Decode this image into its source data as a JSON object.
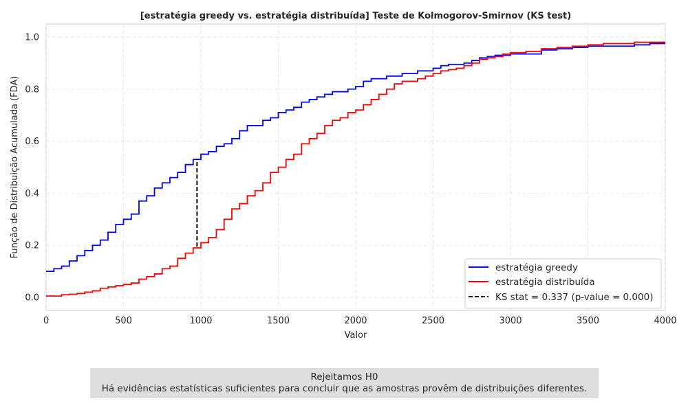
{
  "chart_data": {
    "type": "line",
    "title": "[estratégia greedy vs. estratégia distribuída] Teste de Kolmogorov-Smirnov (KS test)",
    "xlabel": "Valor",
    "ylabel": "Função de Distribuição Acumulada (FDA)",
    "xlim": [
      0,
      4000
    ],
    "ylim": [
      -0.05,
      1.05
    ],
    "x_ticks": [
      0,
      500,
      1000,
      1500,
      2000,
      2500,
      3000,
      3500,
      4000
    ],
    "x_tick_labels": [
      "0",
      "500",
      "1000",
      "1500",
      "2000",
      "2500",
      "3000",
      "3500",
      "4000"
    ],
    "y_ticks": [
      0.0,
      0.2,
      0.4,
      0.6,
      0.8,
      1.0
    ],
    "y_tick_labels": [
      "0.0",
      "0.2",
      "0.4",
      "0.6",
      "0.8",
      "1.0"
    ],
    "grid": true,
    "legend_position": "lower-right",
    "series": [
      {
        "name": "estratégia greedy",
        "color": "#0000ff",
        "x": [
          0,
          50,
          100,
          150,
          200,
          250,
          300,
          350,
          400,
          450,
          500,
          550,
          600,
          650,
          700,
          750,
          800,
          850,
          900,
          950,
          1000,
          1050,
          1100,
          1150,
          1200,
          1250,
          1300,
          1350,
          1400,
          1450,
          1500,
          1550,
          1600,
          1650,
          1700,
          1750,
          1800,
          1850,
          1900,
          1950,
          2000,
          2050,
          2100,
          2150,
          2200,
          2250,
          2300,
          2350,
          2400,
          2450,
          2500,
          2550,
          2600,
          2650,
          2700,
          2750,
          2800,
          2850,
          2900,
          2950,
          3000,
          3100,
          3200,
          3300,
          3400,
          3500,
          3600,
          3700,
          3800,
          3900,
          4000
        ],
        "y": [
          0.1,
          0.11,
          0.12,
          0.14,
          0.16,
          0.18,
          0.2,
          0.22,
          0.25,
          0.28,
          0.3,
          0.32,
          0.37,
          0.39,
          0.42,
          0.44,
          0.46,
          0.48,
          0.51,
          0.53,
          0.55,
          0.56,
          0.58,
          0.59,
          0.61,
          0.64,
          0.66,
          0.66,
          0.68,
          0.69,
          0.71,
          0.72,
          0.73,
          0.75,
          0.76,
          0.77,
          0.78,
          0.79,
          0.79,
          0.8,
          0.81,
          0.83,
          0.84,
          0.84,
          0.85,
          0.85,
          0.86,
          0.86,
          0.87,
          0.87,
          0.88,
          0.89,
          0.895,
          0.895,
          0.9,
          0.91,
          0.92,
          0.925,
          0.93,
          0.93,
          0.935,
          0.935,
          0.95,
          0.955,
          0.96,
          0.965,
          0.965,
          0.965,
          0.97,
          0.975,
          0.975
        ]
      },
      {
        "name": "estratégia distribuída",
        "color": "#ff0000",
        "x": [
          0,
          50,
          100,
          150,
          200,
          250,
          300,
          350,
          400,
          450,
          500,
          550,
          600,
          650,
          700,
          750,
          800,
          850,
          900,
          950,
          1000,
          1050,
          1100,
          1150,
          1200,
          1250,
          1300,
          1350,
          1400,
          1450,
          1500,
          1550,
          1600,
          1650,
          1700,
          1750,
          1800,
          1850,
          1900,
          1950,
          2000,
          2050,
          2100,
          2150,
          2200,
          2250,
          2300,
          2350,
          2400,
          2450,
          2500,
          2550,
          2600,
          2650,
          2700,
          2750,
          2800,
          2850,
          2900,
          2950,
          3000,
          3100,
          3200,
          3300,
          3400,
          3500,
          3600,
          3700,
          3800,
          3900,
          4000
        ],
        "y": [
          0.005,
          0.005,
          0.01,
          0.012,
          0.015,
          0.02,
          0.025,
          0.035,
          0.04,
          0.045,
          0.05,
          0.055,
          0.07,
          0.08,
          0.09,
          0.11,
          0.12,
          0.15,
          0.17,
          0.19,
          0.21,
          0.23,
          0.26,
          0.3,
          0.34,
          0.36,
          0.39,
          0.41,
          0.44,
          0.48,
          0.5,
          0.53,
          0.55,
          0.59,
          0.61,
          0.63,
          0.66,
          0.68,
          0.69,
          0.71,
          0.72,
          0.74,
          0.76,
          0.78,
          0.8,
          0.82,
          0.83,
          0.83,
          0.84,
          0.85,
          0.86,
          0.87,
          0.875,
          0.88,
          0.89,
          0.9,
          0.915,
          0.92,
          0.925,
          0.935,
          0.94,
          0.945,
          0.955,
          0.96,
          0.965,
          0.97,
          0.975,
          0.975,
          0.98,
          0.98,
          0.98
        ]
      }
    ],
    "ks_line": {
      "name": "KS stat = 0.337 (p-value = 0.000)",
      "color": "#000000",
      "x": 975,
      "y_from": 0.195,
      "y_to": 0.532
    }
  },
  "conclusion": {
    "line1": "Rejeitamos H0",
    "line2": "Há evidências estatísticas suficientes para concluir que as amostras provêm de distribuições diferentes."
  }
}
